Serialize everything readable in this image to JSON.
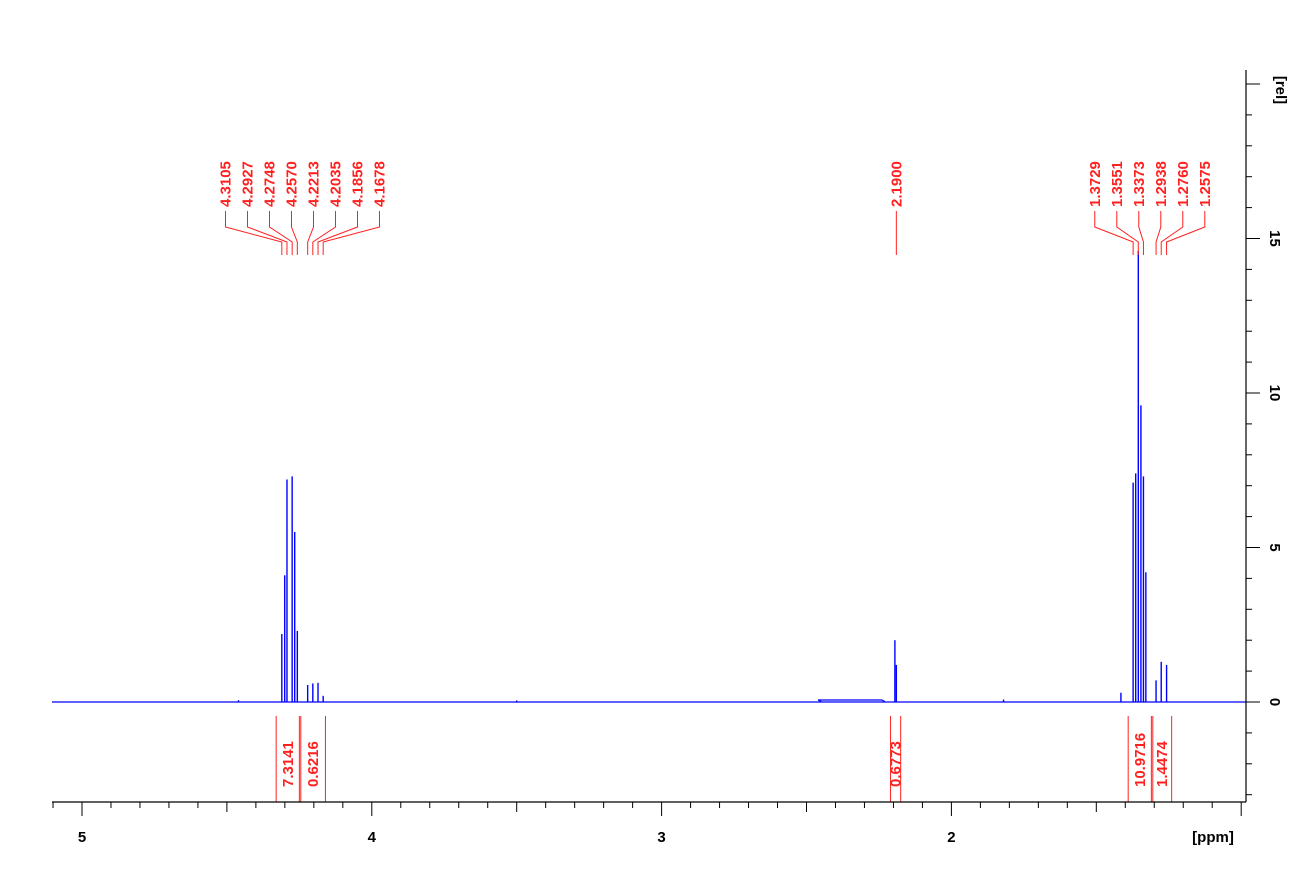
{
  "chart_data": {
    "type": "line",
    "xlabel": "[ppm]",
    "ylabel": "[rel]",
    "xlim": [
      5.1,
      1.1
    ],
    "ylim": [
      -3.2,
      20
    ],
    "x_ticks": [
      5,
      4,
      3,
      2
    ],
    "y_ticks": [
      0,
      5,
      10,
      15
    ],
    "grid": false,
    "series_color": "#0000ff",
    "annotation_color": "#ff2020",
    "spectrum_peaks": [
      {
        "ppm": 4.3105,
        "height": 2.2
      },
      {
        "ppm": 4.2927,
        "height": 7.2
      },
      {
        "ppm": 4.2748,
        "height": 7.3
      },
      {
        "ppm": 4.257,
        "height": 2.3
      },
      {
        "ppm": 4.3005,
        "height": 4.1
      },
      {
        "ppm": 4.266,
        "height": 5.5
      },
      {
        "ppm": 4.2213,
        "height": 0.55
      },
      {
        "ppm": 4.2035,
        "height": 0.6
      },
      {
        "ppm": 4.1856,
        "height": 0.62
      },
      {
        "ppm": 4.1678,
        "height": 0.2
      },
      {
        "ppm": 2.195,
        "height": 2.0
      },
      {
        "ppm": 2.19,
        "height": 1.2
      },
      {
        "ppm": 1.3729,
        "height": 7.1
      },
      {
        "ppm": 1.364,
        "height": 7.4
      },
      {
        "ppm": 1.3551,
        "height": 14.6
      },
      {
        "ppm": 1.346,
        "height": 9.6
      },
      {
        "ppm": 1.3373,
        "height": 7.3
      },
      {
        "ppm": 1.329,
        "height": 4.2
      },
      {
        "ppm": 1.2938,
        "height": 0.7
      },
      {
        "ppm": 1.276,
        "height": 1.3
      },
      {
        "ppm": 1.2575,
        "height": 1.2
      },
      {
        "ppm": 1.415,
        "height": 0.3
      },
      {
        "ppm": 4.46,
        "height": 0.06
      },
      {
        "ppm": 3.5,
        "height": 0.05
      },
      {
        "ppm": 1.82,
        "height": 0.08
      }
    ],
    "peak_groups": [
      {
        "labels": [
          "4.3105",
          "4.2927",
          "4.2748",
          "4.2570",
          "4.2213",
          "4.2035",
          "4.1856",
          "4.1678"
        ],
        "ppm": [
          4.3105,
          4.2927,
          4.2748,
          4.257,
          4.2213,
          4.2035,
          4.1856,
          4.1678
        ]
      },
      {
        "labels": [
          "2.1900"
        ],
        "ppm": [
          2.19
        ]
      },
      {
        "labels": [
          "1.3729",
          "1.3551",
          "1.3373",
          "1.2938",
          "1.2760",
          "1.2575"
        ],
        "ppm": [
          1.3729,
          1.3551,
          1.3373,
          1.2938,
          1.276,
          1.2575
        ]
      }
    ],
    "integrals": [
      {
        "label": "7.3141",
        "from": 4.33,
        "to": 4.25
      },
      {
        "label": "0.6216",
        "from": 4.245,
        "to": 4.16
      },
      {
        "label": "0.6773",
        "from": 2.21,
        "to": 2.175
      },
      {
        "label": "10.9716",
        "from": 1.39,
        "to": 1.31
      },
      {
        "label": "1.4474",
        "from": 1.305,
        "to": 1.24
      }
    ]
  }
}
